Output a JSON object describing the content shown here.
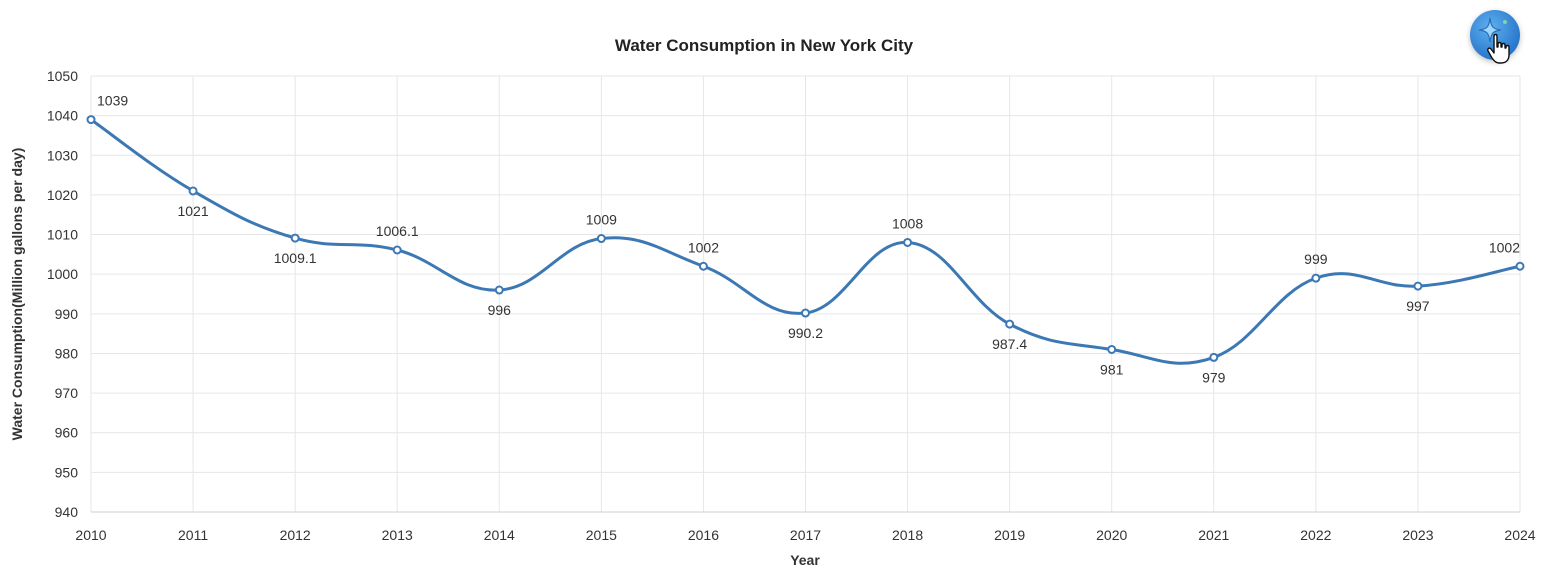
{
  "chart_data": {
    "type": "line",
    "title": "Water Consumption in New York City",
    "xlabel": "Year",
    "ylabel": "Water Consumption(Million gallons per day)",
    "categories": [
      "2010",
      "2011",
      "2012",
      "2013",
      "2014",
      "2015",
      "2016",
      "2017",
      "2018",
      "2019",
      "2020",
      "2021",
      "2022",
      "2023",
      "2024"
    ],
    "series": [
      {
        "name": "Water Consumption",
        "values": [
          1039,
          1021,
          1009.1,
          1006.1,
          996,
          1009,
          1002,
          990.2,
          1008,
          987.4,
          981,
          979,
          999,
          997,
          1002
        ],
        "color": "#3c78b4"
      }
    ],
    "ylim": [
      940,
      1050
    ],
    "yticks": [
      940,
      950,
      960,
      970,
      980,
      990,
      1000,
      1010,
      1020,
      1030,
      1040,
      1050
    ],
    "label_positions": [
      "above",
      "below",
      "below",
      "above",
      "below",
      "above",
      "above",
      "below",
      "above",
      "below",
      "below",
      "below",
      "above",
      "below",
      "above"
    ],
    "grid": true,
    "smooth": true
  },
  "toolbar": {
    "ai_button_icon": "sparkle-icon",
    "cursor_icon": "hand-pointer-icon",
    "accent": "#2a78cc"
  }
}
